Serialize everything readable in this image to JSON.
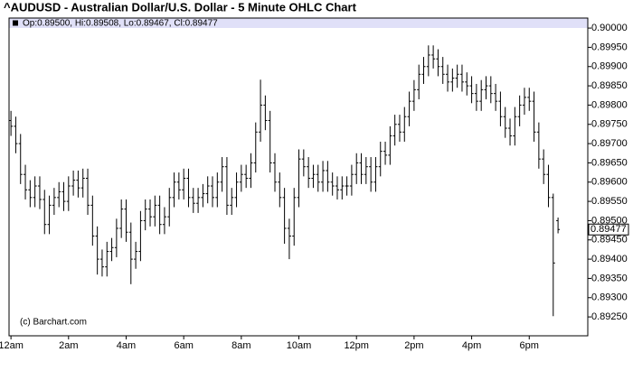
{
  "chart_data": {
    "type": "ohlc",
    "title": "^AUDUSD - Australian Dollar/U.S. Dollar - 5 Minute OHLC Chart",
    "ohlc_label": "Op:0.89500, Hi:0.89508, Lo:0.89467, Cl:0.89477",
    "last_label": "0.89477",
    "credit": "(c) Barchart.com",
    "color": "#000000",
    "header_color": "#e0e0f8",
    "x": [
      0,
      10,
      20,
      30,
      40,
      50,
      60,
      70,
      80,
      90,
      100,
      110,
      120,
      130,
      140,
      150,
      160,
      170,
      180,
      190,
      200,
      210,
      220,
      230,
      240,
      250,
      260,
      270,
      280,
      290,
      300,
      310,
      320,
      330,
      340,
      350,
      360,
      370,
      380,
      390,
      400,
      410,
      420,
      430,
      440,
      450,
      460,
      470,
      480,
      490,
      500,
      510,
      520,
      530,
      540,
      550,
      560,
      570,
      580,
      590,
      600,
      610,
      620,
      630,
      640,
      650,
      660,
      670,
      680,
      690,
      700,
      710,
      720,
      730,
      740,
      750,
      760,
      770,
      780,
      790,
      800,
      810,
      820,
      830,
      840,
      850,
      860,
      870,
      880,
      890,
      900,
      910,
      920,
      930,
      940,
      950,
      960,
      970,
      980,
      990,
      1000,
      1010,
      1020,
      1030,
      1040,
      1050,
      1060,
      1070,
      1080,
      1090,
      1100,
      1110,
      1120,
      1130,
      1140
    ],
    "open": [
      0.8976,
      0.89745,
      0.897,
      0.8962,
      0.8958,
      0.8956,
      0.8959,
      0.89555,
      0.8949,
      0.8954,
      0.8956,
      0.89575,
      0.8955,
      0.8959,
      0.89605,
      0.89585,
      0.8961,
      0.8954,
      0.8946,
      0.894,
      0.8938,
      0.8942,
      0.8943,
      0.8948,
      0.8953,
      0.8947,
      0.894,
      0.8942,
      0.895,
      0.8953,
      0.8951,
      0.8954,
      0.8949,
      0.8951,
      0.8956,
      0.896,
      0.8958,
      0.8961,
      0.8956,
      0.89545,
      0.8956,
      0.8957,
      0.8959,
      0.8956,
      0.896,
      0.8964,
      0.8954,
      0.8956,
      0.896,
      0.8962,
      0.8961,
      0.8965,
      0.8973,
      0.898,
      0.8976,
      0.8965,
      0.896,
      0.8956,
      0.8948,
      0.8946,
      0.8956,
      0.8966,
      0.8964,
      0.8961,
      0.8962,
      0.896,
      0.8963,
      0.896,
      0.8959,
      0.8958,
      0.8959,
      0.8959,
      0.8962,
      0.8965,
      0.8962,
      0.8964,
      0.896,
      0.8964,
      0.8968,
      0.8967,
      0.8972,
      0.8975,
      0.8973,
      0.8977,
      0.8981,
      0.8984,
      0.8988,
      0.899,
      0.8993,
      0.8992,
      0.899,
      0.8988,
      0.8986,
      0.8987,
      0.8988,
      0.8986,
      0.8985,
      0.8983,
      0.8981,
      0.8984,
      0.8985,
      0.8983,
      0.8981,
      0.8977,
      0.8974,
      0.8972,
      0.8977,
      0.898,
      0.8982,
      0.8981,
      0.8973,
      0.8966,
      0.8962,
      0.8956,
      0.895
    ],
    "high": [
      0.89785,
      0.8977,
      0.89725,
      0.89645,
      0.89605,
      0.89615,
      0.89615,
      0.8958,
      0.89565,
      0.89585,
      0.896,
      0.896,
      0.89615,
      0.8963,
      0.8963,
      0.89635,
      0.89635,
      0.89565,
      0.89485,
      0.89425,
      0.89445,
      0.89455,
      0.89505,
      0.89555,
      0.89555,
      0.89495,
      0.89445,
      0.89525,
      0.89555,
      0.89555,
      0.89565,
      0.89565,
      0.89535,
      0.89585,
      0.89625,
      0.89625,
      0.89635,
      0.89635,
      0.89585,
      0.89585,
      0.89595,
      0.89615,
      0.89615,
      0.89625,
      0.89665,
      0.89665,
      0.89585,
      0.89625,
      0.89645,
      0.89645,
      0.89675,
      0.89755,
      0.89866,
      0.89825,
      0.89785,
      0.89675,
      0.89625,
      0.89585,
      0.89505,
      0.89585,
      0.89685,
      0.89685,
      0.89665,
      0.89645,
      0.89645,
      0.89655,
      0.89655,
      0.89625,
      0.89615,
      0.89615,
      0.89615,
      0.89645,
      0.89675,
      0.89675,
      0.89665,
      0.89665,
      0.89665,
      0.89705,
      0.89705,
      0.89745,
      0.89775,
      0.89775,
      0.89795,
      0.89835,
      0.89865,
      0.89905,
      0.89925,
      0.89955,
      0.89955,
      0.89945,
      0.89925,
      0.89905,
      0.89895,
      0.89905,
      0.89905,
      0.89885,
      0.89875,
      0.89855,
      0.89865,
      0.89875,
      0.89875,
      0.89855,
      0.89835,
      0.89795,
      0.89765,
      0.89795,
      0.89825,
      0.89845,
      0.89845,
      0.89835,
      0.89755,
      0.89685,
      0.89645,
      0.8957,
      0.89508
    ],
    "low": [
      0.8972,
      0.89675,
      0.89595,
      0.89555,
      0.89535,
      0.89535,
      0.8953,
      0.89465,
      0.89465,
      0.89515,
      0.89535,
      0.89525,
      0.89525,
      0.89565,
      0.8956,
      0.8956,
      0.89515,
      0.89435,
      0.8936,
      0.89355,
      0.89355,
      0.89395,
      0.89405,
      0.89455,
      0.89445,
      0.89335,
      0.89375,
      0.89395,
      0.89475,
      0.89485,
      0.89485,
      0.89465,
      0.89465,
      0.89485,
      0.89535,
      0.89555,
      0.89555,
      0.89535,
      0.8952,
      0.8952,
      0.89535,
      0.89545,
      0.89535,
      0.89535,
      0.89575,
      0.89515,
      0.89515,
      0.89535,
      0.89575,
      0.89585,
      0.89585,
      0.89625,
      0.89705,
      0.89735,
      0.89625,
      0.89575,
      0.89535,
      0.8944,
      0.894,
      0.89435,
      0.89535,
      0.89615,
      0.89585,
      0.89585,
      0.89575,
      0.89575,
      0.89575,
      0.89565,
      0.89555,
      0.89555,
      0.89565,
      0.89565,
      0.89595,
      0.89595,
      0.89595,
      0.89575,
      0.89575,
      0.89615,
      0.89645,
      0.89645,
      0.89695,
      0.89705,
      0.89705,
      0.89745,
      0.89785,
      0.89815,
      0.89855,
      0.89875,
      0.89895,
      0.89875,
      0.89855,
      0.89835,
      0.89835,
      0.89845,
      0.89835,
      0.89825,
      0.89805,
      0.89785,
      0.89785,
      0.89815,
      0.89805,
      0.89785,
      0.89745,
      0.89715,
      0.89695,
      0.89695,
      0.89745,
      0.89775,
      0.89785,
      0.89705,
      0.89635,
      0.89595,
      0.89535,
      0.89252,
      0.89467
    ],
    "close": [
      0.89745,
      0.897,
      0.8962,
      0.8958,
      0.8956,
      0.8959,
      0.89555,
      0.8949,
      0.8954,
      0.8956,
      0.89575,
      0.8955,
      0.8959,
      0.89605,
      0.89585,
      0.8961,
      0.8954,
      0.8946,
      0.894,
      0.8938,
      0.8942,
      0.8943,
      0.8948,
      0.8953,
      0.8947,
      0.894,
      0.8942,
      0.895,
      0.8953,
      0.8951,
      0.8954,
      0.8949,
      0.8951,
      0.8956,
      0.896,
      0.8958,
      0.8961,
      0.8956,
      0.89545,
      0.8956,
      0.8957,
      0.8959,
      0.8956,
      0.896,
      0.8964,
      0.8954,
      0.8956,
      0.896,
      0.8962,
      0.8961,
      0.8965,
      0.8973,
      0.898,
      0.8976,
      0.8965,
      0.896,
      0.8956,
      0.8948,
      0.8946,
      0.8956,
      0.8966,
      0.8964,
      0.8961,
      0.8962,
      0.896,
      0.8963,
      0.896,
      0.8959,
      0.8958,
      0.8959,
      0.8959,
      0.8962,
      0.8965,
      0.8962,
      0.8964,
      0.896,
      0.8964,
      0.8968,
      0.8967,
      0.8972,
      0.8975,
      0.8973,
      0.8977,
      0.8981,
      0.8984,
      0.8988,
      0.899,
      0.8993,
      0.8992,
      0.899,
      0.8988,
      0.8986,
      0.8987,
      0.8988,
      0.8986,
      0.8985,
      0.8983,
      0.8981,
      0.8984,
      0.8985,
      0.8983,
      0.8981,
      0.8977,
      0.8974,
      0.8972,
      0.8977,
      0.898,
      0.8982,
      0.8981,
      0.8973,
      0.8966,
      0.8962,
      0.8956,
      0.8939,
      0.89477
    ],
    "xlim": [
      -4,
      1202
    ],
    "xticks": [
      {
        "value": 0,
        "label": "12am"
      },
      {
        "value": 120,
        "label": "2am"
      },
      {
        "value": 240,
        "label": "4am"
      },
      {
        "value": 360,
        "label": "6am"
      },
      {
        "value": 480,
        "label": "8am"
      },
      {
        "value": 600,
        "label": "10am"
      },
      {
        "value": 720,
        "label": "12pm"
      },
      {
        "value": 840,
        "label": "2pm"
      },
      {
        "value": 960,
        "label": "4pm"
      },
      {
        "value": 1080,
        "label": "6pm"
      }
    ],
    "ylim": [
      0.89201,
      0.90026
    ],
    "yticks": [
      {
        "value": 0.8925,
        "label": "0.89250"
      },
      {
        "value": 0.893,
        "label": "0.89300"
      },
      {
        "value": 0.8935,
        "label": "0.89350"
      },
      {
        "value": 0.894,
        "label": "0.89400"
      },
      {
        "value": 0.8945,
        "label": "0.89450"
      },
      {
        "value": 0.895,
        "label": "0.89500"
      },
      {
        "value": 0.8955,
        "label": "0.89550"
      },
      {
        "value": 0.896,
        "label": "0.89600"
      },
      {
        "value": 0.8965,
        "label": "0.89650"
      },
      {
        "value": 0.897,
        "label": "0.89700"
      },
      {
        "value": 0.8975,
        "label": "0.89750"
      },
      {
        "value": 0.898,
        "label": "0.89800"
      },
      {
        "value": 0.8985,
        "label": "0.89850"
      },
      {
        "value": 0.899,
        "label": "0.89900"
      },
      {
        "value": 0.8995,
        "label": "0.89950"
      },
      {
        "value": 0.9,
        "label": "0.90000"
      }
    ],
    "grid": false
  }
}
